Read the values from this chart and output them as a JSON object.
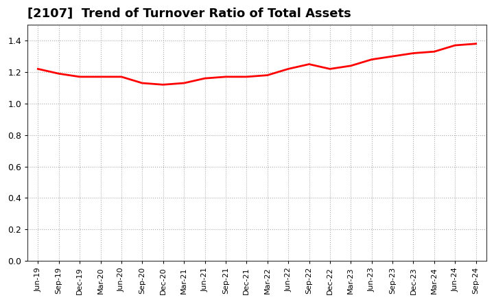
{
  "title": "[2107]  Trend of Turnover Ratio of Total Assets",
  "title_fontsize": 13,
  "line_color": "#FF0000",
  "line_width": 2.0,
  "background_color": "#FFFFFF",
  "ylim": [
    0.0,
    1.5
  ],
  "yticks": [
    0.0,
    0.2,
    0.4,
    0.6,
    0.8,
    1.0,
    1.2,
    1.4
  ],
  "x_labels": [
    "Jun-19",
    "Sep-19",
    "Dec-19",
    "Mar-20",
    "Jun-20",
    "Sep-20",
    "Dec-20",
    "Mar-21",
    "Jun-21",
    "Sep-21",
    "Dec-21",
    "Mar-22",
    "Jun-22",
    "Sep-22",
    "Dec-22",
    "Mar-23",
    "Jun-23",
    "Sep-23",
    "Dec-23",
    "Mar-24",
    "Jun-24",
    "Sep-24"
  ],
  "y_values": [
    1.22,
    1.19,
    1.17,
    1.17,
    1.17,
    1.13,
    1.12,
    1.13,
    1.16,
    1.17,
    1.17,
    1.18,
    1.22,
    1.25,
    1.22,
    1.24,
    1.28,
    1.3,
    1.32,
    1.33,
    1.37,
    1.38
  ]
}
